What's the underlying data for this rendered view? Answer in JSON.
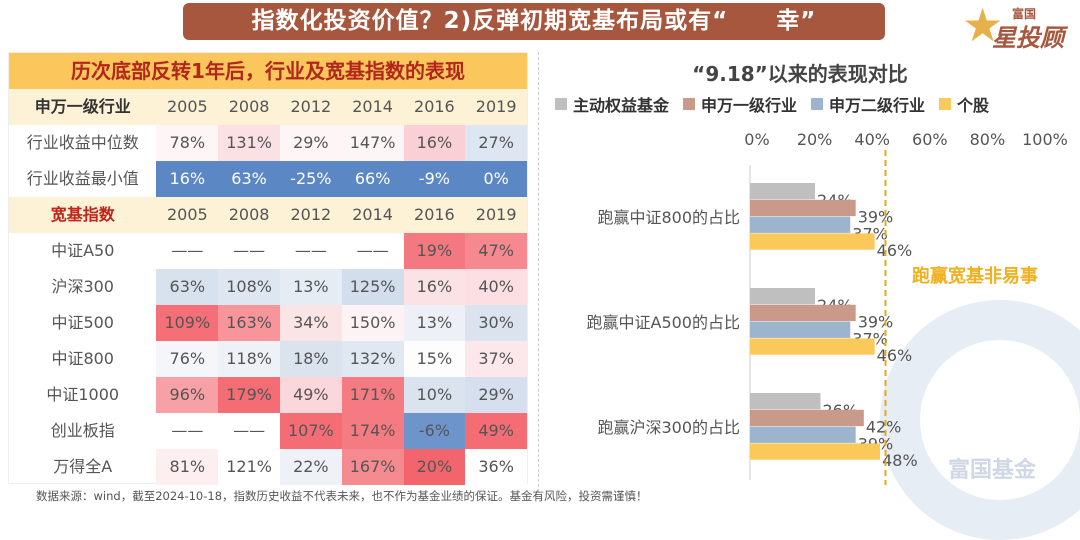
{
  "header": {
    "title": "指数化投资价值？2)反弹初期宽基布局或有“　　幸”",
    "logo_text": "富国星投顾"
  },
  "table": {
    "title": "历次底部反转1年后，行业及宽基指数的表现",
    "section1": {
      "label": "申万一级行业",
      "years": [
        "2005",
        "2008",
        "2012",
        "2014",
        "2016",
        "2019"
      ],
      "rows": [
        {
          "label": "行业收益中位数",
          "values": [
            "78%",
            "131%",
            "29%",
            "147%",
            "16%",
            "27%"
          ],
          "colors": [
            "#fdf5f6",
            "#fbe0e4",
            "#fdf5f6",
            "#fdf6f7",
            "#f9d0d5",
            "#dde6f1"
          ]
        },
        {
          "label": "行业收益最小值",
          "values": [
            "16%",
            "63%",
            "-25%",
            "66%",
            "-9%",
            "0%"
          ],
          "colors": [
            "#5b87c5",
            "#5b87c5",
            "#5b87c5",
            "#5b87c5",
            "#5b87c5",
            "#5b87c5"
          ]
        }
      ]
    },
    "section2": {
      "label": "宽基指数",
      "years": [
        "2005",
        "2008",
        "2012",
        "2014",
        "2016",
        "2019"
      ],
      "rows": [
        {
          "label": "中证A50",
          "values": [
            "——",
            "——",
            "——",
            "——",
            "19%",
            "47%"
          ],
          "colors": [
            "#ffffff",
            "#ffffff",
            "#ffffff",
            "#ffffff",
            "#f4787f",
            "#f68990"
          ]
        },
        {
          "label": "沪深300",
          "values": [
            "63%",
            "108%",
            "13%",
            "125%",
            "16%",
            "40%"
          ],
          "colors": [
            "#d8e2ef",
            "#dee6f1",
            "#e6ecf4",
            "#d3deec",
            "#fbe2e5",
            "#fbdfe2"
          ]
        },
        {
          "label": "中证500",
          "values": [
            "109%",
            "163%",
            "34%",
            "150%",
            "13%",
            "30%"
          ],
          "colors": [
            "#f46f77",
            "#f7959b",
            "#fbe4e6",
            "#fdf3f4",
            "#edf1f7",
            "#dbe3ef"
          ]
        },
        {
          "label": "中证800",
          "values": [
            "76%",
            "118%",
            "18%",
            "132%",
            "15%",
            "37%"
          ],
          "colors": [
            "#f4f6fa",
            "#eef2f7",
            "#dbe3ef",
            "#e0e8f2",
            "#fdfdfe",
            "#fce8ea"
          ]
        },
        {
          "label": "中证1000",
          "values": [
            "96%",
            "179%",
            "49%",
            "171%",
            "10%",
            "29%"
          ],
          "colors": [
            "#f7a0a5",
            "#f46c74",
            "#fbd6da",
            "#f57a81",
            "#dbe3ef",
            "#d5dfed"
          ]
        },
        {
          "label": "创业板指",
          "values": [
            "——",
            "——",
            "107%",
            "174%",
            "-6%",
            "49%"
          ],
          "colors": [
            "#ffffff",
            "#ffffff",
            "#f46d75",
            "#f57b82",
            "#6d95cb",
            "#f46c74"
          ]
        },
        {
          "label": "万得全A",
          "values": [
            "81%",
            "121%",
            "22%",
            "167%",
            "20%",
            "36%"
          ],
          "colors": [
            "#fdeef0",
            "#ffffff",
            "#eef2f8",
            "#f68a91",
            "#f2656d",
            "#ffffff"
          ]
        }
      ]
    }
  },
  "footer": "数据来源：wind，截至2024-10-18，指数历史收益不代表未来，也不作为基金业绩的保证。基金有风险，投资需谨慎！",
  "chart_data": {
    "type": "bar",
    "orientation": "horizontal",
    "title": "“9.18”以来的表现对比",
    "categories": [
      "跑赢中证800的占比",
      "跑赢中证A500的占比",
      "跑赢沪深300的占比"
    ],
    "series": [
      {
        "name": "主动权益基金",
        "color": "#bfbfbf",
        "values": [
          24,
          24,
          26
        ]
      },
      {
        "name": "申万一级行业",
        "color": "#c99a89",
        "values": [
          39,
          39,
          42
        ]
      },
      {
        "name": "申万二级行业",
        "color": "#9db4cf",
        "values": [
          37,
          37,
          39
        ]
      },
      {
        "name": "个股",
        "color": "#fbc85a",
        "values": [
          46,
          46,
          48
        ]
      }
    ],
    "xlim": [
      0,
      100
    ],
    "xticks": [
      "0%",
      "20%",
      "40%",
      "60%",
      "80%",
      "100%"
    ],
    "reference_line": {
      "value": 50,
      "color": "#e6a817",
      "style": "dashed"
    },
    "annotation": "跑赢宽基非易事",
    "legend": "top",
    "grid": false
  },
  "watermark": "富国基金"
}
